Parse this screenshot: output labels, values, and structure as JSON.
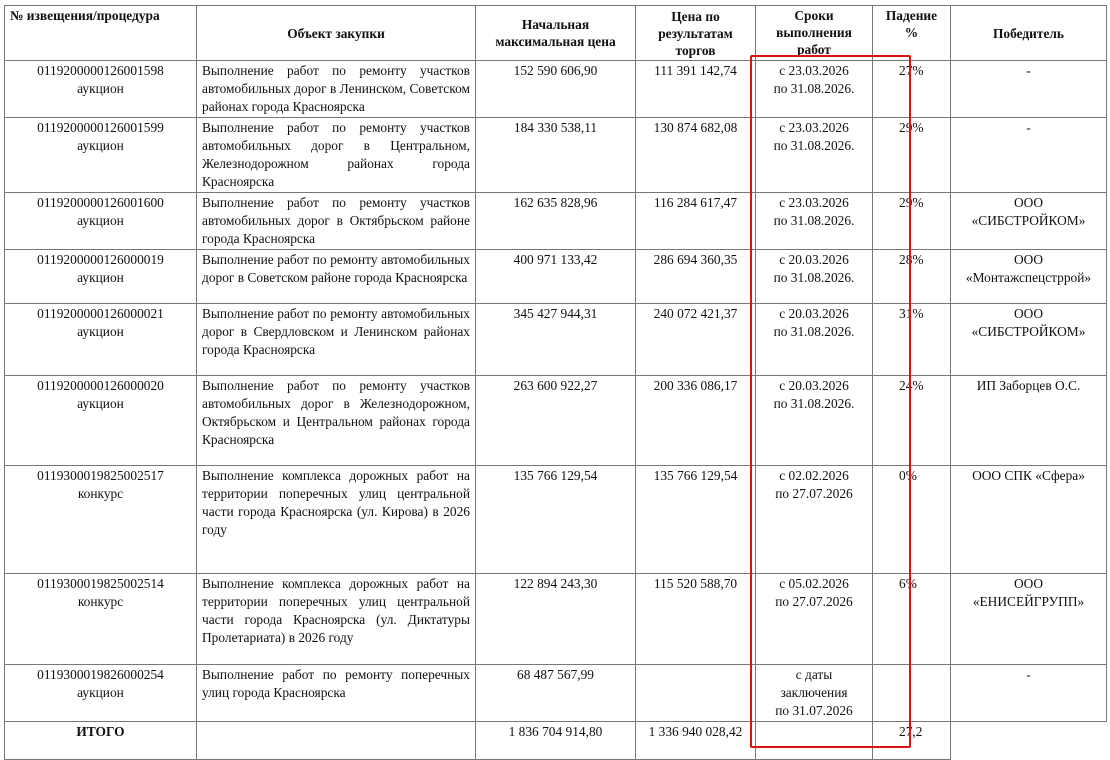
{
  "headers": [
    "№ извещения/процедура",
    "Объект закупки",
    "Начальная максимальная цена",
    "Цена по результатам торгов",
    "Сроки выполнения работ",
    "Падение %",
    "Победитель"
  ],
  "rows": [
    {
      "notice": "0119200000126001598",
      "procedure": "аукцион",
      "object": "Выполнение работ по ремонту участков автомобильных дорог в Ленинском, Советском районах города Красноярска",
      "nmc": "152 590 606,90",
      "result": "111 391 142,74",
      "term1": "с 23.03.2026",
      "term2": "по 31.08.2026.",
      "term3": "",
      "drop": "27%",
      "winner1": "-",
      "winner2": ""
    },
    {
      "notice": "0119200000126001599",
      "procedure": "аукцион",
      "object": "Выполнение работ по ремонту участков автомобильных дорог в Центральном, Железнодорожном районах города Красноярска",
      "nmc": "184 330 538,11",
      "result": "130 874 682,08",
      "term1": "с 23.03.2026",
      "term2": "по 31.08.2026.",
      "term3": "",
      "drop": "29%",
      "winner1": "-",
      "winner2": ""
    },
    {
      "notice": "0119200000126001600",
      "procedure": "аукцион",
      "object": "Выполнение работ по ремонту участков автомобильных дорог в Октябрьском районе города Красноярска",
      "nmc": "162 635 828,96",
      "result": "116 284 617,47",
      "term1": "с 23.03.2026",
      "term2": "по 31.08.2026.",
      "term3": "",
      "drop": "29%",
      "winner1": "ООО",
      "winner2": "«СИБСТРОЙКОМ»"
    },
    {
      "notice": "0119200000126000019",
      "procedure": "аукцион",
      "object": "Выполнение работ по ремонту автомобильных дорог в Советском районе города Красноярска",
      "nmc": "400 971 133,42",
      "result": "286 694 360,35",
      "term1": "с 20.03.2026",
      "term2": "по 31.08.2026.",
      "term3": "",
      "drop": "28%",
      "winner1": "ООО",
      "winner2": "«Монтажспецстррой»"
    },
    {
      "notice": "0119200000126000021",
      "procedure": "аукцион",
      "object": "Выполнение работ по ремонту автомобильных дорог в Свердловском и Ленинском районах города Красноярска",
      "nmc": "345 427 944,31",
      "result": "240 072 421,37",
      "term1": "с 20.03.2026",
      "term2": "по 31.08.2026.",
      "term3": "",
      "drop": "31%",
      "winner1": "ООО",
      "winner2": "«СИБСТРОЙКОМ»"
    },
    {
      "notice": "0119200000126000020",
      "procedure": "аукцион",
      "object": "Выполнение работ по ремонту участков автомобильных дорог в Железнодорожном, Октябрьском и Центральном районах города Красноярска",
      "nmc": "263 600 922,27",
      "result": "200 336 086,17",
      "term1": "с 20.03.2026",
      "term2": "по 31.08.2026.",
      "term3": "",
      "drop": "24%",
      "winner1": "ИП Заборцев О.С.",
      "winner2": ""
    },
    {
      "notice": "0119300019825002517",
      "procedure": "конкурс",
      "object": "Выполнение комплекса дорожных работ на территории поперечных улиц центральной части города Красноярска (ул. Кирова) в 2026 году",
      "nmc": "135 766 129,54",
      "result": "135 766 129,54",
      "term1": "с 02.02.2026",
      "term2": "по 27.07.2026",
      "term3": "",
      "drop": "0%",
      "winner1": "ООО СПК «Сфера»",
      "winner2": ""
    },
    {
      "notice": "0119300019825002514",
      "procedure": "конкурс",
      "object": "Выполнение комплекса дорожных работ на территории поперечных улиц центральной части города Красноярска (ул. Диктатуры Пролетариата) в 2026 году",
      "nmc": "122 894 243,30",
      "result": "115 520 588,70",
      "term1": "с 05.02.2026",
      "term2": "по 27.07.2026",
      "term3": "",
      "drop": "6%",
      "winner1": "ООО",
      "winner2": "«ЕНИСЕЙГРУПП»"
    },
    {
      "notice": "0119300019826000254",
      "procedure": "аукцион",
      "object": "Выполнение работ по ремонту поперечных улиц города Красноярска",
      "nmc": "68 487 567,99",
      "result": "",
      "term1": "с даты",
      "term2": "заключения",
      "term3": "по 31.07.2026",
      "drop": "",
      "winner1": "-",
      "winner2": ""
    }
  ],
  "total": {
    "label": "ИТОГО",
    "nmc": "1 836 704 914,80",
    "result": "1 336 940 028,42",
    "drop": "27,2"
  },
  "highlight_color": "#dd1111"
}
